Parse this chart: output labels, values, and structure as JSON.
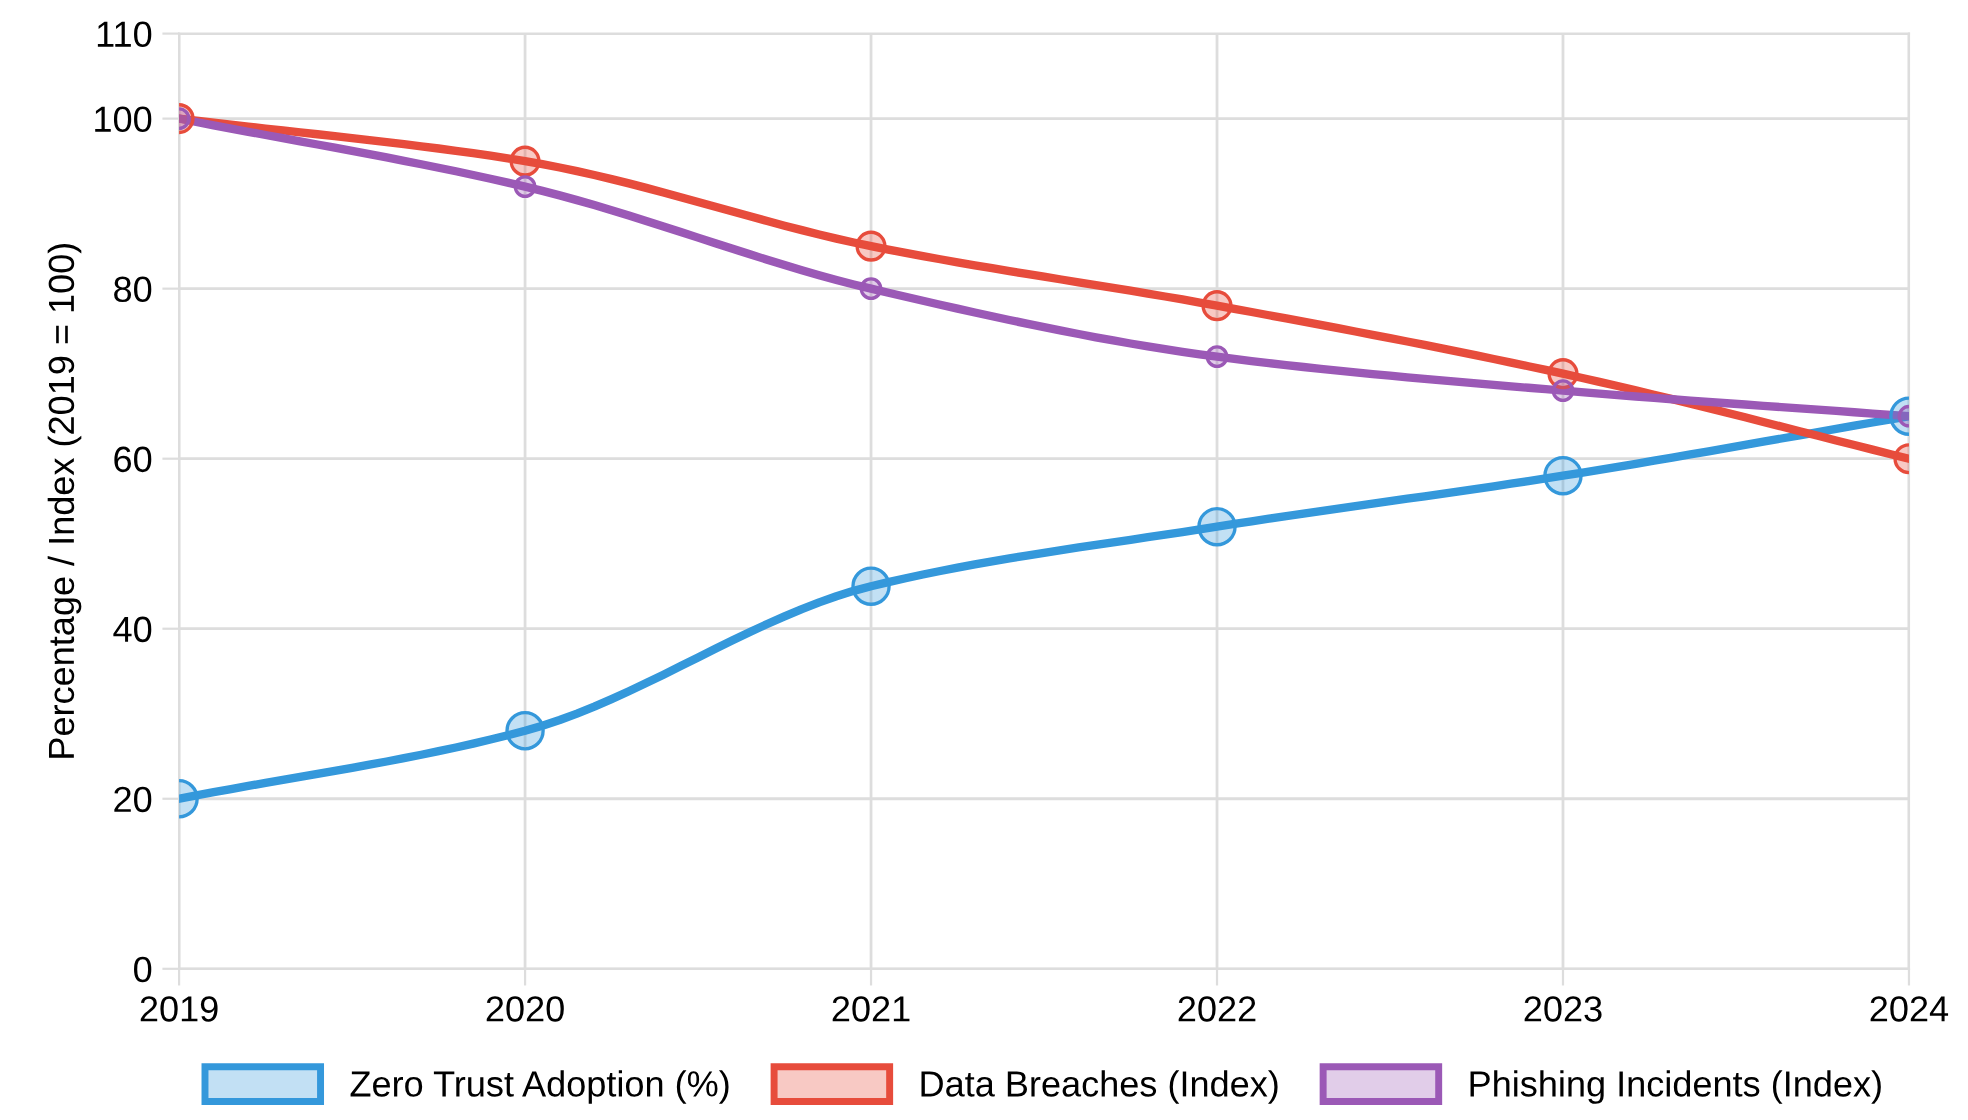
{
  "chart_data": {
    "type": "line",
    "ylabel": "Percentage / Index (2019 = 100)",
    "categories": [
      "2019",
      "2020",
      "2021",
      "2022",
      "2023",
      "2024"
    ],
    "series": [
      {
        "name": "Zero Trust Adoption (%)",
        "color": "#3498db",
        "values": [
          20,
          28,
          45,
          52,
          58,
          65
        ]
      },
      {
        "name": "Data Breaches (Index)",
        "color": "#e74c3c",
        "values": [
          100,
          95,
          85,
          78,
          70,
          60
        ]
      },
      {
        "name": "Phishing Incidents (Index)",
        "color": "#9b59b6",
        "values": [
          100,
          92,
          80,
          72,
          68,
          65
        ]
      }
    ],
    "ylim": [
      0,
      110
    ],
    "yticks": [
      0,
      20,
      40,
      60,
      80,
      100,
      110
    ],
    "grid": true,
    "legend": "bottom",
    "marker": "circle",
    "line_style": "solid"
  }
}
